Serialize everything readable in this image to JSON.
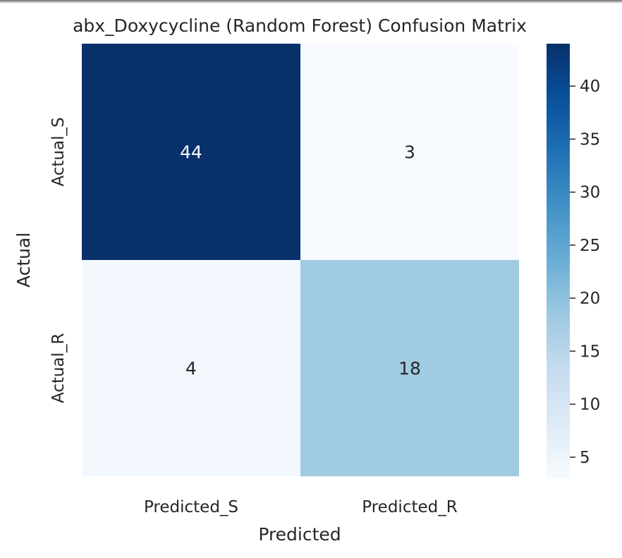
{
  "chart_data": {
    "type": "heatmap",
    "title": "abx_Doxycycline (Random Forest) Confusion Matrix",
    "xlabel": "Predicted",
    "ylabel": "Actual",
    "x_categories": [
      "Predicted_S",
      "Predicted_R"
    ],
    "y_categories": [
      "Actual_S",
      "Actual_R"
    ],
    "values": [
      [
        44,
        3
      ],
      [
        4,
        18
      ]
    ],
    "colormap": "Blues",
    "color_min": 3,
    "color_max": 44,
    "colorbar_ticks": [
      5,
      10,
      15,
      20,
      25,
      30,
      35,
      40
    ],
    "annotations": true,
    "grid": false
  }
}
